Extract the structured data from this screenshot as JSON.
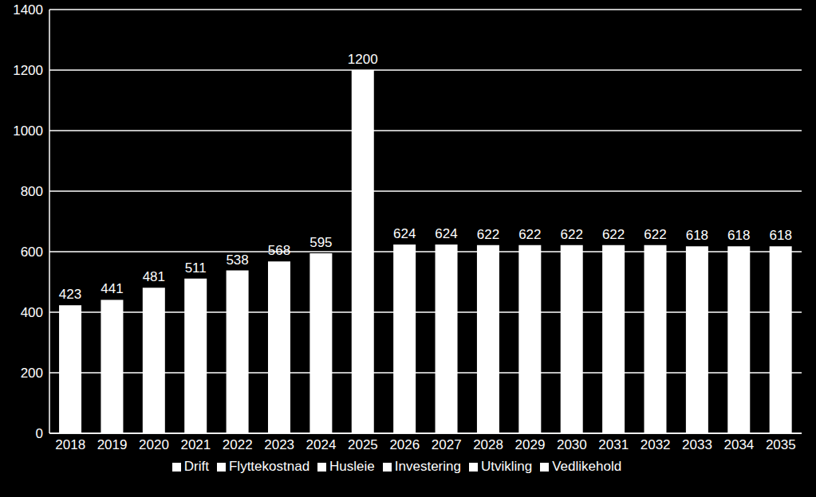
{
  "chart_data": {
    "type": "bar",
    "categories": [
      "2018",
      "2019",
      "2020",
      "2021",
      "2022",
      "2023",
      "2024",
      "2025",
      "2026",
      "2027",
      "2028",
      "2029",
      "2030",
      "2031",
      "2032",
      "2033",
      "2034",
      "2035"
    ],
    "series": [
      {
        "name": "Husleie",
        "color": "#ffffff",
        "values": [
          423,
          441,
          481,
          511,
          538,
          568,
          595,
          1200,
          624,
          624,
          622,
          622,
          622,
          622,
          622,
          618,
          618,
          618
        ]
      },
      {
        "name": "Drift",
        "color": "#ffffff",
        "values": [
          null,
          null,
          null,
          null,
          null,
          null,
          null,
          null,
          null,
          null,
          null,
          null,
          null,
          null,
          null,
          null,
          null,
          null
        ]
      },
      {
        "name": "Vedlikehold",
        "color": "#ffffff",
        "values": [
          null,
          null,
          null,
          null,
          null,
          null,
          null,
          null,
          null,
          null,
          null,
          null,
          null,
          null,
          null,
          null,
          null,
          null
        ]
      },
      {
        "name": "Utvikling",
        "color": "#ffffff",
        "values": [
          null,
          null,
          null,
          null,
          null,
          null,
          null,
          null,
          null,
          null,
          null,
          null,
          null,
          null,
          null,
          null,
          null,
          null
        ]
      },
      {
        "name": "Investering",
        "color": "#ffffff",
        "values": [
          null,
          null,
          null,
          null,
          null,
          null,
          null,
          null,
          null,
          null,
          null,
          null,
          null,
          null,
          null,
          null,
          null,
          null
        ]
      },
      {
        "name": "Flyttekostnad",
        "color": "#ffffff",
        "values": [
          null,
          null,
          null,
          null,
          null,
          null,
          null,
          null,
          null,
          null,
          null,
          null,
          null,
          null,
          null,
          null,
          null,
          null
        ]
      }
    ],
    "ylim": [
      0,
      1400
    ],
    "yticks": [
      0,
      200,
      400,
      600,
      800,
      1000,
      1200,
      1400
    ],
    "grid": true,
    "stacked": true,
    "data_labels": true,
    "legend": "bottom"
  }
}
